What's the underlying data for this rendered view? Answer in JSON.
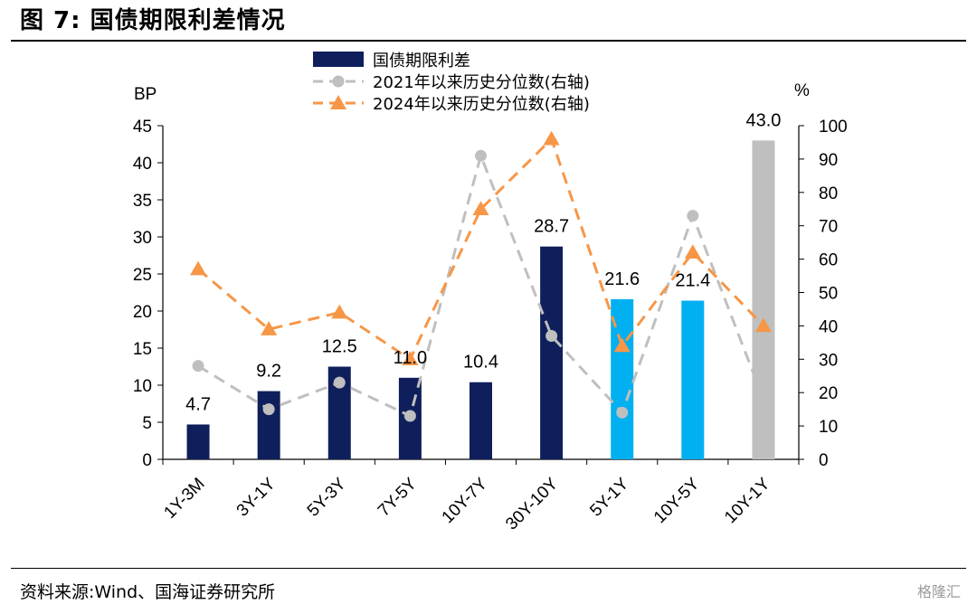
{
  "title": "图 7:  国债期限利差情况",
  "source": "资料来源:Wind、国海证券研究所",
  "watermark": "格隆汇",
  "chart_data": {
    "type": "bar",
    "categories": [
      "1Y-3M",
      "3Y-1Y",
      "5Y-3Y",
      "7Y-5Y",
      "10Y-7Y",
      "30Y-10Y",
      "5Y-1Y",
      "10Y-5Y",
      "10Y-1Y"
    ],
    "left_axis": {
      "label": "BP",
      "ylim": [
        0,
        45
      ],
      "ticks": [
        0,
        5,
        10,
        15,
        20,
        25,
        30,
        35,
        40,
        45
      ]
    },
    "right_axis": {
      "label": "%",
      "ylim": [
        0,
        100
      ],
      "ticks": [
        0,
        10,
        20,
        30,
        40,
        50,
        60,
        70,
        80,
        90,
        100
      ]
    },
    "series": [
      {
        "name": "国债期限利差",
        "kind": "bar",
        "axis": "left",
        "values": [
          4.7,
          9.2,
          12.5,
          11.0,
          10.4,
          28.7,
          21.6,
          21.4,
          43.0
        ],
        "labels": [
          "4.7",
          "9.2",
          "12.5",
          "11.0",
          "10.4",
          "28.7",
          "21.6",
          "21.4",
          "43.0"
        ],
        "colors": [
          "#0f1f5c",
          "#0f1f5c",
          "#0f1f5c",
          "#0f1f5c",
          "#0f1f5c",
          "#0f1f5c",
          "#00b0f0",
          "#00b0f0",
          "#bfbfbf"
        ]
      },
      {
        "name": "2021年以来历史分位数(右轴)",
        "kind": "line",
        "axis": "right",
        "marker": "circle",
        "color": "#bfbfbf",
        "values": [
          28,
          15,
          23,
          13,
          91,
          37,
          14,
          73,
          18
        ]
      },
      {
        "name": "2024年以来历史分位数(右轴)",
        "kind": "line",
        "axis": "right",
        "marker": "triangle",
        "color": "#f79646",
        "values": [
          57,
          39,
          44,
          30,
          75,
          96,
          34,
          62,
          40
        ]
      }
    ],
    "legend_position": "top-center",
    "grid": false
  }
}
